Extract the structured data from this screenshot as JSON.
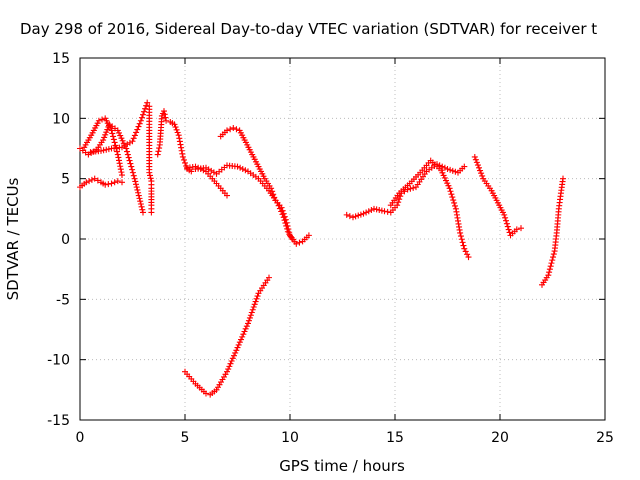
{
  "chart_data": {
    "type": "scatter",
    "title": "Day 298 of 2016, Sidereal Day-to-day VTEC variation (SDTVAR) for receiver t",
    "xlabel": "GPS time / hours",
    "ylabel": "SDTVAR / TECUs",
    "xlim": [
      0,
      25
    ],
    "ylim": [
      -15,
      15
    ],
    "x_ticks": [
      0,
      5,
      10,
      15,
      20,
      25
    ],
    "y_ticks": [
      -15,
      -10,
      -5,
      0,
      5,
      10,
      15
    ],
    "grid": true,
    "marker": "+",
    "color": "#ff0000",
    "series": [
      {
        "x": [
          0.0,
          0.3,
          0.7,
          1.0,
          1.2,
          1.5,
          1.8,
          2.0
        ],
        "y": [
          4.3,
          4.7,
          5.0,
          4.7,
          4.5,
          4.6,
          4.8,
          4.7
        ]
      },
      {
        "x": [
          0.0,
          0.4,
          0.8,
          1.1,
          1.4,
          1.8,
          2.2,
          2.6,
          3.0
        ],
        "y": [
          7.5,
          7.0,
          7.4,
          8.2,
          9.5,
          9.0,
          7.5,
          5.0,
          2.2
        ]
      },
      {
        "x": [
          0.2,
          0.6,
          0.9,
          1.2,
          1.5,
          1.8,
          2.0
        ],
        "y": [
          7.6,
          8.8,
          9.8,
          10.0,
          9.0,
          7.0,
          5.3
        ]
      },
      {
        "x": [
          0.5,
          1.0,
          1.5,
          2.0,
          2.5,
          2.9,
          3.1,
          3.2
        ],
        "y": [
          7.2,
          7.3,
          7.5,
          7.6,
          8.1,
          9.8,
          10.8,
          11.3
        ]
      },
      {
        "x": [
          3.3,
          3.3,
          3.3,
          3.3,
          3.3,
          3.4,
          3.4,
          3.4,
          3.4,
          3.4
        ],
        "y": [
          11.0,
          9.0,
          7.5,
          6.5,
          5.5,
          4.8,
          4.2,
          3.5,
          2.8,
          2.2
        ]
      },
      {
        "x": [
          3.7,
          3.8,
          3.9,
          4.0,
          4.1,
          4.3,
          4.5,
          4.7,
          4.9,
          5.1,
          5.3
        ],
        "y": [
          7.0,
          7.8,
          10.2,
          10.6,
          9.8,
          9.7,
          9.5,
          8.6,
          6.8,
          5.8,
          5.6
        ]
      },
      {
        "x": [
          5.1,
          5.5,
          6.0,
          6.5,
          7.0
        ],
        "y": [
          5.9,
          6.0,
          5.6,
          4.6,
          3.6
        ]
      },
      {
        "x": [
          5.5,
          6.0,
          6.5,
          7.0,
          7.5,
          8.0,
          8.5,
          9.0,
          9.4,
          9.7,
          9.9,
          10.1
        ],
        "y": [
          5.8,
          5.9,
          5.4,
          6.1,
          6.0,
          5.6,
          5.0,
          4.0,
          3.0,
          1.8,
          0.6,
          0.0
        ]
      },
      {
        "x": [
          6.7,
          7.0,
          7.3,
          7.6,
          7.9,
          8.2,
          8.5,
          8.8,
          9.1,
          9.3,
          9.6,
          9.8,
          10.0,
          10.3,
          10.6,
          10.9
        ],
        "y": [
          8.5,
          9.0,
          9.2,
          9.0,
          8.0,
          7.0,
          6.0,
          5.0,
          4.2,
          3.2,
          2.6,
          1.6,
          0.3,
          -0.4,
          -0.2,
          0.3
        ]
      },
      {
        "x": [
          5.0,
          5.5,
          6.0,
          6.2,
          6.5,
          7.0,
          7.5,
          8.0,
          8.5,
          9.0
        ],
        "y": [
          -11.0,
          -12.0,
          -12.8,
          -12.9,
          -12.5,
          -11.0,
          -9.0,
          -7.0,
          -4.5,
          -3.2
        ]
      },
      {
        "x": [
          12.7,
          13.0,
          13.5,
          14.0,
          14.5,
          14.8,
          15.1,
          15.3,
          15.6,
          16.0,
          16.5,
          17.0,
          17.5,
          18.0,
          18.3
        ],
        "y": [
          2.0,
          1.8,
          2.1,
          2.5,
          2.3,
          2.2,
          2.8,
          3.8,
          4.1,
          4.3,
          5.6,
          6.2,
          5.8,
          5.5,
          6.0
        ]
      },
      {
        "x": [
          14.8,
          15.2,
          15.7,
          16.2,
          16.7,
          17.2,
          17.6,
          17.9,
          18.1,
          18.3,
          18.5
        ],
        "y": [
          2.8,
          3.8,
          4.6,
          5.5,
          6.5,
          5.7,
          4.2,
          2.5,
          0.5,
          -0.8,
          -1.5
        ]
      },
      {
        "x": [
          18.8,
          19.2,
          19.6,
          19.9,
          20.2,
          20.5,
          20.8,
          21.0
        ],
        "y": [
          6.8,
          5.0,
          4.0,
          3.0,
          2.0,
          0.3,
          0.8,
          0.9
        ]
      },
      {
        "x": [
          22.0,
          22.3,
          22.6,
          22.7,
          22.8,
          22.9,
          23.0
        ],
        "y": [
          -3.8,
          -3.0,
          -1.0,
          0.5,
          2.5,
          3.8,
          5.0
        ]
      }
    ]
  }
}
